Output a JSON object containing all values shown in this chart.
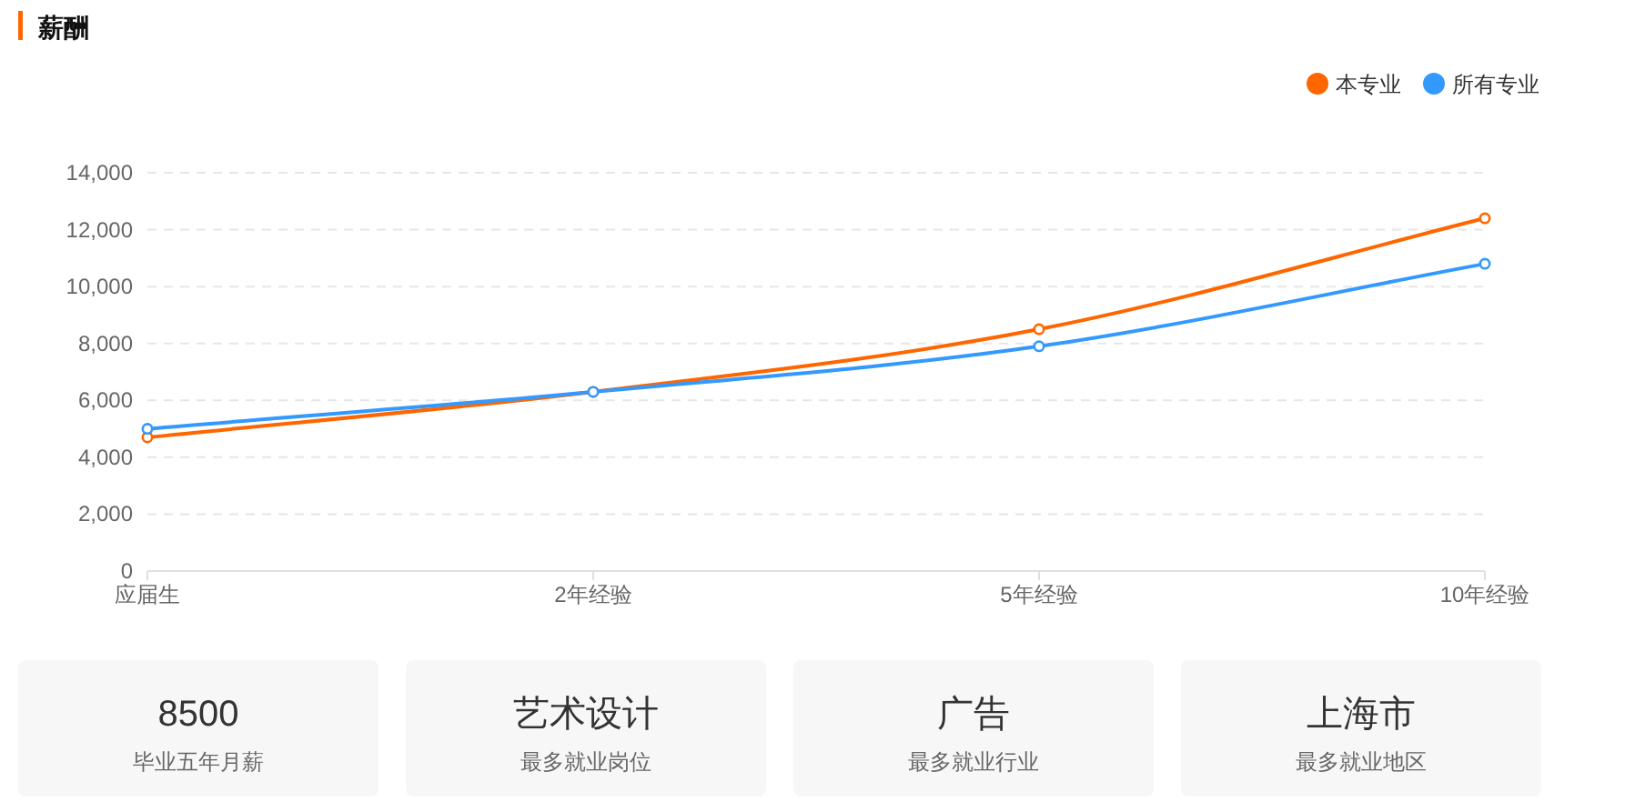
{
  "chart_data": [
    {
      "type": "line",
      "title": "薪酬",
      "categories": [
        "应届生",
        "2年经验",
        "5年经验",
        "10年经验"
      ],
      "series": [
        {
          "name": "本专业",
          "color": "#ff6600",
          "values": [
            4700,
            6300,
            8500,
            12400
          ]
        },
        {
          "name": "所有专业",
          "color": "#3399ff",
          "values": [
            5000,
            6300,
            7900,
            10800
          ]
        }
      ],
      "ylim": [
        0,
        14000
      ],
      "yticks": [
        0,
        {
          "value": 2000,
          "label": "2,000"
        },
        {
          "value": 4000,
          "label": "4,000"
        },
        {
          "value": 6000,
          "label": "6,000"
        },
        {
          "value": 8000,
          "label": "8,000"
        },
        {
          "value": 10000,
          "label": "10,000"
        },
        {
          "value": 12000,
          "label": "12,000"
        },
        {
          "value": 14000,
          "label": "14,000"
        }
      ],
      "grid": "y",
      "legend": "top right",
      "marker": "circle",
      "line_style": "solid"
    },
    {
      "type": "other",
      "annotations": [
        "8500",
        "毕业五年月薪",
        "艺术设计",
        "最多就业岗位",
        "广告",
        "最多就业行业",
        "上海市",
        "最多就业地区"
      ]
    }
  ]
}
